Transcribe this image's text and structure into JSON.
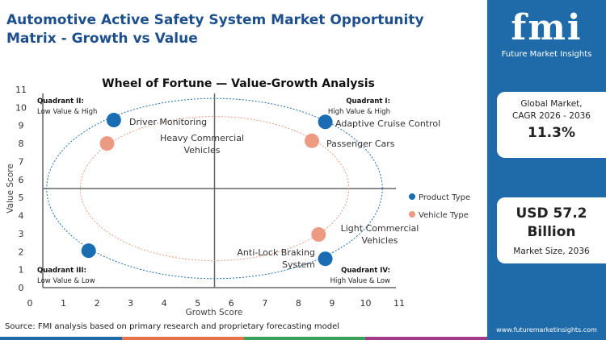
{
  "title": "Automotive Active Safety System Market Opportunity Matrix - Growth vs Value",
  "source": "Source: FMI analysis based on primary research and proprietary forecasting model",
  "panel": {
    "logo_text": "fmi",
    "logo_sub": "Future Market Insights",
    "cagr_label_1": "Global Market,",
    "cagr_label_2": "CAGR 2026 - 2036",
    "cagr_value": "11.3%",
    "size_value_1": "USD 57.2",
    "size_value_2": "Billion",
    "size_label": "Market Size, 2036",
    "url": "www.futuremarketinsights.com",
    "color": "#1f6aa8"
  },
  "chart_data": {
    "type": "scatter",
    "title": "Wheel of Fortune — Value-Growth Analysis",
    "xlabel": "Growth Score",
    "ylabel": "Value Score",
    "xlim": [
      0,
      11
    ],
    "ylim": [
      0,
      11
    ],
    "xticks": [
      "0",
      "1",
      "2",
      "3",
      "4",
      "5",
      "6",
      "7",
      "8",
      "9",
      "10",
      "11"
    ],
    "yticks": [
      "0",
      "1",
      "2",
      "3",
      "4",
      "5",
      "6",
      "7",
      "8",
      "9",
      "10",
      "11"
    ],
    "divider": {
      "x": 5.5,
      "y": 5.5
    },
    "legend_position": "right",
    "quadrants": [
      {
        "name": "Quadrant I:",
        "desc": "High Value & High",
        "pos": "top-right"
      },
      {
        "name": "Quadrant II:",
        "desc": "Low Value & High",
        "pos": "top-left"
      },
      {
        "name": "Quadrant III:",
        "desc": "Low Value & Low",
        "pos": "bottom-left"
      },
      {
        "name": "Quadrant IV:",
        "desc": "High Value & Low",
        "pos": "bottom-right"
      }
    ],
    "series": [
      {
        "name": "Product Type",
        "color": "#1a6db3",
        "ring": {
          "cx": 5.5,
          "cy": 5.5,
          "rx": 5,
          "ry": 5
        },
        "points": [
          {
            "x": 2.5,
            "y": 9.3,
            "label": "Driver Monitoring"
          },
          {
            "x": 8.8,
            "y": 9.2,
            "label": "Adaptive Cruise Control"
          },
          {
            "x": 1.75,
            "y": 2.05,
            "label": ""
          },
          {
            "x": 8.8,
            "y": 1.6,
            "label": "Anti-Lock Braking System"
          }
        ]
      },
      {
        "name": "Vehicle Type",
        "color": "#ec9a82",
        "ring": {
          "cx": 5.5,
          "cy": 5.5,
          "rx": 4,
          "ry": 4
        },
        "points": [
          {
            "x": 2.3,
            "y": 8.0,
            "label": "Heavy Commercial Vehicles"
          },
          {
            "x": 8.4,
            "y": 8.15,
            "label": "Passenger Cars"
          },
          {
            "x": 8.6,
            "y": 2.95,
            "label": "Light Commercial Vehicles"
          }
        ]
      }
    ]
  }
}
